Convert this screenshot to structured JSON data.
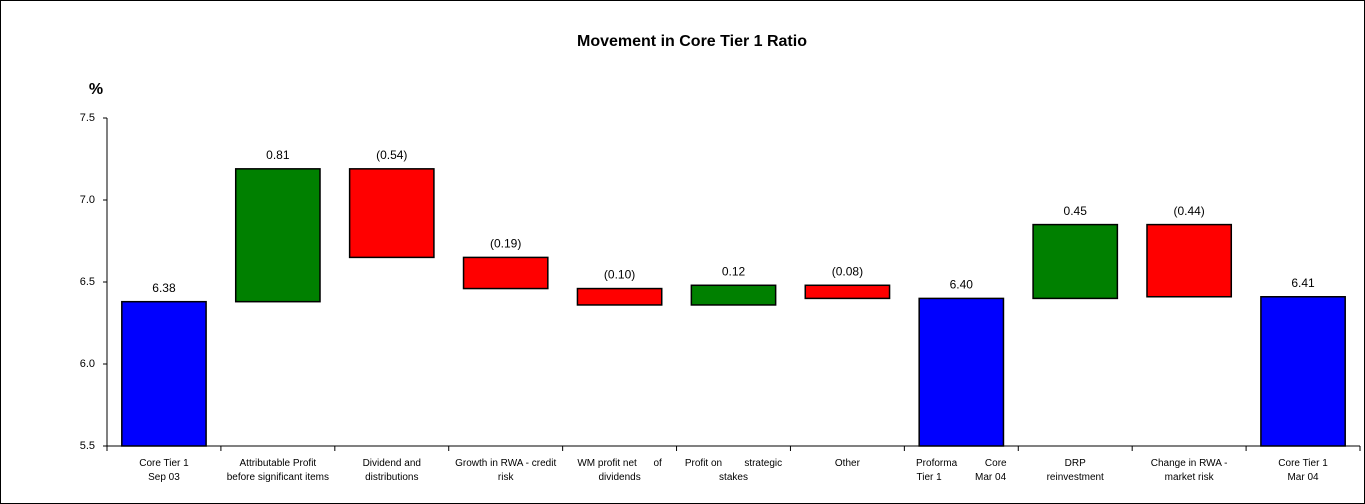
{
  "chart_data": {
    "type": "waterfall",
    "title": "Movement in Core Tier 1 Ratio",
    "y_label": "%",
    "categories": [
      "Core Tier 1\nSep 03",
      "Attributable Profit\nbefore significant items",
      "Dividend and\ndistributions",
      "Growth in RWA - credit\nrisk",
      "WM profit net      of\ndividends",
      "Profit on        strategic\nstakes",
      "Other",
      "Proforma          Core\nTier 1            Mar 04",
      "DRP\nreinvestment",
      "Change in RWA -\nmarket risk",
      "Core Tier 1\nMar 04"
    ],
    "values": [
      6.38,
      0.81,
      -0.54,
      -0.19,
      -0.1,
      0.12,
      -0.08,
      6.4,
      0.45,
      -0.44,
      6.41
    ],
    "value_labels": [
      "6.38",
      "0.81",
      "(0.54)",
      "(0.19)",
      "(0.10)",
      "0.12",
      "(0.08)",
      "6.40",
      "0.45",
      "(0.44)",
      "6.41"
    ],
    "measure": [
      "total",
      "relative",
      "relative",
      "relative",
      "relative",
      "relative",
      "relative",
      "total",
      "relative",
      "relative",
      "total"
    ],
    "colors": {
      "total": "#0000ff",
      "increase": "#008000",
      "decrease": "#ff0000"
    },
    "ylim": [
      5.5,
      7.5
    ],
    "yticks": [
      5.5,
      {
        "value": 6,
        "label": "6.0"
      },
      6.5,
      {
        "value": 7,
        "label": "7.0"
      },
      7.5
    ],
    "grid": false
  }
}
